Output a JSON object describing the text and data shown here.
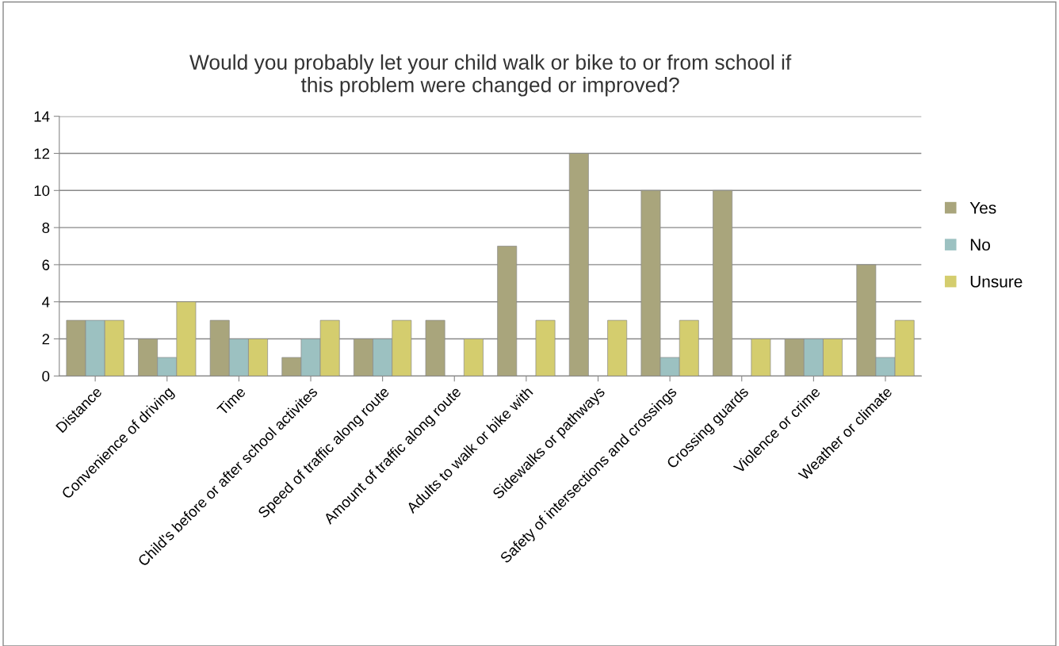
{
  "chart_data": {
    "type": "bar",
    "title": "Would you probably let your child walk or bike to or from school if\nthis problem were changed or improved?",
    "categories": [
      "Distance",
      "Convenience of driving",
      "Time",
      "Child's before or after school activites",
      "Speed of traffic along route",
      "Amount of traffic along route",
      "Adults to walk or bike with",
      "Sidewalks or pathways",
      "Safety of intersections and crossings",
      "Crossing guards",
      "Violence or crime",
      "Weather or climate"
    ],
    "series": [
      {
        "name": "Yes",
        "color": "#a9a57c",
        "values": [
          3,
          2,
          3,
          1,
          2,
          3,
          7,
          12,
          10,
          10,
          2,
          6
        ]
      },
      {
        "name": "No",
        "color": "#9cc1c1",
        "values": [
          3,
          1,
          2,
          2,
          2,
          null,
          null,
          null,
          1,
          null,
          2,
          1
        ]
      },
      {
        "name": "Unsure",
        "color": "#d4cd6e",
        "values": [
          3,
          4,
          2,
          3,
          3,
          2,
          3,
          3,
          3,
          2,
          2,
          3
        ]
      }
    ],
    "ylim": [
      0,
      14
    ],
    "yticks": [
      0,
      2,
      4,
      6,
      8,
      10,
      12,
      14
    ],
    "grid": "y",
    "legend": "right"
  }
}
